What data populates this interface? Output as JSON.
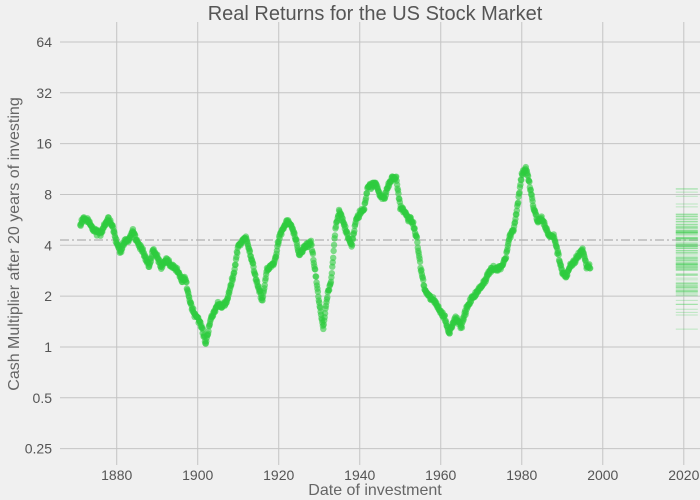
{
  "chart_data": {
    "type": "scatter",
    "title": "Real Returns for the US Stock Market",
    "xlabel": "Date of investment",
    "ylabel": "Cash Multiplier after 20 years of investing",
    "y_scale": "log2",
    "xlim": [
      1866,
      2024
    ],
    "ylim": [
      0.2,
      84
    ],
    "x_ticks": [
      1880,
      1900,
      1920,
      1940,
      1960,
      1980,
      2000,
      2020
    ],
    "x_tick_labels": [
      "1880",
      "1900",
      "1920",
      "1940",
      "1960",
      "1980",
      "2000",
      "2020"
    ],
    "y_ticks": [
      0.25,
      0.5,
      1,
      2,
      4,
      8,
      16,
      32,
      64
    ],
    "y_tick_labels": [
      "0.25",
      "0.5",
      "1",
      "2",
      "4",
      "8",
      "16",
      "32",
      "64"
    ],
    "grid": true,
    "reference_line": {
      "y": 4.3,
      "style": "dash-dot",
      "color": "#b0b0b0"
    },
    "marker_color": "#2ecc40",
    "series": [
      {
        "x": [
          1871.0,
          1872.0,
          1873.0,
          1874.0,
          1875.0,
          1876.0,
          1877.0,
          1878.0,
          1879.0,
          1880.0,
          1881.0,
          1882.0,
          1883.0,
          1884.0,
          1885.0,
          1886.0,
          1887.0,
          1888.0,
          1889.0,
          1890.0,
          1891.0,
          1892.0,
          1893.0,
          1894.0,
          1895.0,
          1896.0,
          1897.0,
          1898.0,
          1899.0,
          1900.0,
          1901.0,
          1902.0,
          1903.0,
          1904.0,
          1905.0,
          1906.0,
          1907.0,
          1908.0,
          1909.0,
          1910.0,
          1911.0,
          1912.0,
          1913.0,
          1914.0,
          1915.0,
          1916.0,
          1917.0,
          1918.0,
          1919.0,
          1920.0,
          1921.0,
          1922.0,
          1923.0,
          1924.0,
          1925.0,
          1926.0,
          1927.0,
          1928.0,
          1929.0,
          1930.0,
          1931.0,
          1932.0,
          1933.0,
          1934.0,
          1935.0,
          1936.0,
          1937.0,
          1938.0,
          1939.0,
          1940.0,
          1941.0,
          1942.0,
          1943.0,
          1944.0,
          1945.0,
          1946.0,
          1947.0,
          1948.0,
          1949.0,
          1950.0,
          1951.0,
          1952.0,
          1953.0,
          1954.0,
          1955.0,
          1956.0,
          1957.0,
          1958.0,
          1959.0,
          1960.0,
          1961.0,
          1962.0,
          1963.0,
          1964.0,
          1965.0,
          1966.0,
          1967.0,
          1968.0,
          1969.0,
          1970.0,
          1971.0,
          1972.0,
          1973.0,
          1974.0,
          1975.0,
          1976.0,
          1977.0,
          1978.0,
          1979.0,
          1980.0,
          1981.0,
          1982.0,
          1983.0,
          1984.0,
          1985.0,
          1986.0,
          1987.0,
          1988.0,
          1989.0,
          1990.0,
          1991.0,
          1992.0,
          1993.0,
          1994.0,
          1995.0,
          1996.0
        ],
        "y": [
          5.3,
          5.8,
          5.5,
          5.0,
          4.8,
          4.7,
          5.3,
          5.8,
          5.2,
          4.1,
          3.7,
          4.2,
          4.3,
          4.9,
          4.2,
          3.9,
          3.4,
          3.0,
          3.8,
          3.4,
          3.0,
          3.3,
          3.1,
          3.0,
          2.8,
          2.5,
          2.5,
          1.9,
          1.6,
          1.5,
          1.3,
          1.05,
          1.4,
          1.6,
          1.8,
          1.75,
          1.8,
          2.2,
          2.8,
          4.0,
          4.2,
          4.5,
          3.5,
          2.8,
          2.2,
          1.9,
          2.8,
          3.0,
          3.2,
          4.3,
          5.0,
          5.5,
          5.3,
          4.5,
          3.5,
          3.8,
          4.0,
          4.1,
          2.8,
          1.8,
          1.3,
          2.0,
          2.5,
          5.0,
          6.5,
          5.5,
          4.5,
          4.0,
          5.5,
          6.2,
          6.5,
          9.0,
          9.0,
          9.3,
          8.0,
          7.5,
          9.0,
          10.0,
          10.0,
          6.8,
          6.3,
          5.8,
          5.5,
          4.5,
          3.0,
          2.2,
          2.0,
          1.9,
          1.8,
          1.6,
          1.5,
          1.2,
          1.4,
          1.5,
          1.3,
          1.6,
          1.8,
          2.0,
          2.1,
          2.3,
          2.5,
          2.8,
          2.9,
          2.9,
          3.0,
          3.4,
          4.5,
          5.0,
          7.0,
          10.5,
          11.5,
          9.0,
          6.5,
          5.5,
          5.8,
          5.0,
          4.5,
          4.5,
          3.5,
          2.8,
          2.6,
          3.0,
          3.2,
          3.5,
          3.8,
          3.0
        ],
        "values_note": "Each x is a year; the chart also shows several nearby points per year around these values."
      }
    ],
    "distribution_strip": {
      "x": 2020,
      "y_range": [
        1.05,
        12
      ]
    }
  }
}
